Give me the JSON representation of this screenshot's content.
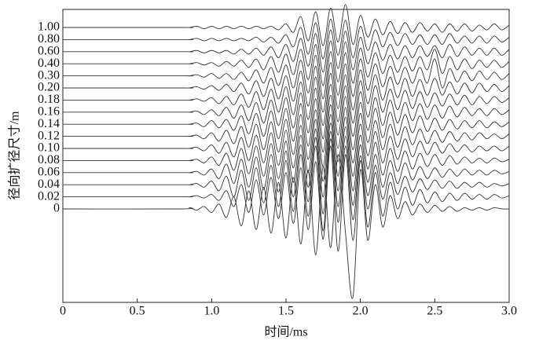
{
  "chart_data": {
    "type": "waveform-stack",
    "x_label": "时间/ms",
    "y_label": "径向扩径尺寸/m",
    "xlim": [
      0,
      3.0
    ],
    "xticks": [
      0,
      0.5,
      {
        "value": 1.0,
        "label": "1.0"
      },
      1.5,
      {
        "value": 2.0,
        "label": "2.0"
      },
      2.5,
      {
        "value": 3.0,
        "label": "3.0"
      }
    ],
    "color": "#333333",
    "x": [
      0,
      0.8,
      0.85,
      0.9,
      0.95,
      1.0,
      1.05,
      1.1,
      1.15,
      1.2,
      1.25,
      1.3,
      1.35,
      1.4,
      1.45,
      1.5,
      1.55,
      1.6,
      1.65,
      1.7,
      1.75,
      1.8,
      1.85,
      1.9,
      1.95,
      2.0,
      2.05,
      2.1,
      2.15,
      2.2,
      2.25,
      2.3,
      2.35,
      2.4,
      2.45,
      2.5,
      2.55,
      2.6,
      2.65,
      2.7,
      2.75,
      2.8,
      2.85,
      2.9,
      2.95,
      3.0
    ],
    "series": [
      {
        "name": "1.00",
        "values": [
          0,
          0,
          0,
          0.1,
          -0.1,
          0.1,
          -0.1,
          0.1,
          -0.1,
          0.1,
          -0.1,
          0.1,
          -0.1,
          0.1,
          -0.2,
          0.3,
          -0.4,
          0.9,
          -1.1,
          1.3,
          -1.5,
          1.6,
          -1.2,
          1.9,
          -1.4,
          1.0,
          -0.8,
          0.7,
          -0.6,
          0.5,
          -0.5,
          0.4,
          -0.4,
          0.4,
          -0.3,
          0.3,
          -0.4,
          0.3,
          -0.3,
          0.3,
          -0.3,
          0.2,
          -0.2,
          0.3,
          -0.2,
          0.2
        ]
      },
      {
        "name": "0.80",
        "values": [
          0,
          0,
          0,
          0.1,
          -0.1,
          0.1,
          -0.1,
          0.1,
          -0.1,
          0.1,
          -0.1,
          0.2,
          -0.2,
          0.2,
          -0.3,
          0.4,
          -0.6,
          1.0,
          -1.2,
          1.4,
          -1.6,
          1.7,
          -1.3,
          1.6,
          -1.5,
          1.1,
          -0.9,
          0.8,
          -0.6,
          0.6,
          -0.5,
          0.5,
          -0.4,
          0.4,
          -0.4,
          0.4,
          -0.4,
          0.5,
          -0.3,
          0.3,
          -0.3,
          0.3,
          -0.3,
          0.3,
          -0.2,
          0.2
        ]
      },
      {
        "name": "0.60",
        "values": [
          0,
          0,
          0,
          0.1,
          -0.1,
          0.1,
          -0.1,
          0.1,
          -0.2,
          0.2,
          -0.2,
          0.3,
          -0.3,
          0.4,
          -0.5,
          0.6,
          -0.8,
          1.1,
          -1.2,
          1.5,
          -1.7,
          1.8,
          -1.4,
          1.7,
          -1.5,
          1.2,
          -1.0,
          0.8,
          -0.7,
          0.6,
          -0.6,
          0.5,
          -0.5,
          0.5,
          -0.4,
          0.5,
          -0.5,
          0.6,
          -0.4,
          0.4,
          -0.3,
          0.3,
          -0.3,
          0.3,
          -0.3,
          0.2
        ]
      },
      {
        "name": "0.40",
        "values": [
          0,
          0,
          0,
          0.1,
          -0.1,
          0.1,
          -0.2,
          0.2,
          -0.2,
          0.3,
          -0.3,
          0.4,
          -0.5,
          0.6,
          -0.7,
          0.8,
          -0.9,
          1.2,
          -1.3,
          1.6,
          -1.8,
          1.9,
          -1.5,
          1.8,
          -1.6,
          1.3,
          -1.1,
          0.9,
          -0.8,
          0.7,
          -0.7,
          0.6,
          -0.6,
          0.6,
          -0.5,
          1.2,
          -0.8,
          0.6,
          -0.5,
          0.4,
          -0.4,
          0.3,
          -0.3,
          0.3,
          -0.3,
          0.2
        ]
      },
      {
        "name": "0.30",
        "values": [
          0,
          0,
          0,
          0.1,
          -0.1,
          0.2,
          -0.2,
          0.2,
          -0.3,
          0.3,
          -0.4,
          0.5,
          -0.6,
          0.7,
          -0.8,
          0.9,
          -1.0,
          1.3,
          -1.4,
          1.7,
          -1.9,
          2.0,
          -1.6,
          1.9,
          -1.7,
          1.4,
          -1.2,
          1.0,
          -0.9,
          0.8,
          -0.7,
          0.7,
          -0.6,
          0.7,
          -0.6,
          1.4,
          -1.0,
          0.6,
          -0.5,
          0.4,
          -0.4,
          0.4,
          -0.3,
          0.3,
          -0.3,
          0.2
        ]
      },
      {
        "name": "0.20",
        "values": [
          0,
          0,
          0,
          0.1,
          -0.1,
          0.2,
          -0.2,
          0.3,
          -0.3,
          0.4,
          -0.5,
          0.6,
          -0.7,
          0.8,
          -0.9,
          1.0,
          -1.1,
          1.4,
          -1.5,
          1.8,
          -2.0,
          2.1,
          -1.7,
          2.0,
          -1.8,
          1.5,
          -1.3,
          1.1,
          -1.0,
          0.9,
          -0.8,
          0.8,
          -0.7,
          0.7,
          -0.6,
          0.8,
          -0.6,
          0.5,
          -0.5,
          0.4,
          -0.4,
          0.4,
          -0.3,
          0.3,
          -0.3,
          0.2
        ]
      },
      {
        "name": "0.18",
        "values": [
          0,
          0,
          0,
          0.1,
          -0.1,
          0.2,
          -0.3,
          0.3,
          -0.4,
          0.5,
          -0.6,
          0.7,
          -0.8,
          0.9,
          -1.0,
          1.1,
          -1.2,
          1.5,
          -1.6,
          1.9,
          -2.1,
          2.2,
          -1.8,
          2.1,
          -1.9,
          1.6,
          -1.4,
          1.2,
          -1.0,
          0.9,
          -0.8,
          0.8,
          -0.7,
          0.7,
          -0.6,
          0.6,
          -0.5,
          0.5,
          -0.4,
          0.4,
          -0.4,
          0.3,
          -0.3,
          0.3,
          -0.2,
          0.2
        ]
      },
      {
        "name": "0.16",
        "values": [
          0,
          0,
          0,
          0.1,
          -0.2,
          0.2,
          -0.3,
          0.4,
          -0.5,
          0.6,
          -0.7,
          0.8,
          -0.9,
          1.0,
          -1.1,
          1.2,
          -1.3,
          1.6,
          -1.7,
          2.0,
          -2.2,
          2.3,
          -1.9,
          2.2,
          -2.0,
          1.7,
          -1.5,
          1.2,
          -1.1,
          1.0,
          -0.9,
          0.8,
          -0.7,
          0.7,
          -0.6,
          0.6,
          -0.5,
          0.5,
          -0.4,
          0.4,
          -0.3,
          0.3,
          -0.3,
          0.3,
          -0.2,
          0.2
        ]
      },
      {
        "name": "0.14",
        "values": [
          0,
          0,
          0,
          0.1,
          -0.2,
          0.3,
          -0.3,
          0.4,
          -0.5,
          0.7,
          -0.8,
          0.9,
          -1.0,
          1.1,
          -1.2,
          1.3,
          -1.4,
          1.7,
          -1.8,
          2.1,
          -2.3,
          2.4,
          -2.0,
          2.3,
          -2.1,
          1.8,
          -1.5,
          1.3,
          -1.1,
          1.0,
          -0.9,
          0.8,
          -0.7,
          0.7,
          -0.6,
          0.5,
          -0.5,
          0.4,
          -0.4,
          0.3,
          -0.3,
          0.3,
          -0.3,
          0.2,
          -0.2,
          0.2
        ]
      },
      {
        "name": "0.12",
        "values": [
          0,
          0,
          0,
          0.1,
          -0.2,
          0.3,
          -0.4,
          0.5,
          -0.6,
          0.8,
          -0.9,
          1.0,
          -1.1,
          1.2,
          -1.3,
          1.4,
          -1.5,
          1.8,
          -1.9,
          2.2,
          -2.5,
          2.6,
          -2.1,
          2.4,
          -2.2,
          1.9,
          -1.6,
          1.3,
          -1.1,
          1.0,
          -0.9,
          0.8,
          -0.7,
          0.6,
          -0.6,
          0.5,
          -0.5,
          0.4,
          -0.4,
          0.3,
          -0.3,
          0.3,
          -0.2,
          0.2,
          -0.2,
          0.2
        ]
      },
      {
        "name": "0.10",
        "values": [
          0,
          0,
          0,
          0.1,
          -0.2,
          0.3,
          -0.4,
          0.5,
          -0.7,
          0.9,
          -1.0,
          1.1,
          -1.2,
          1.3,
          -1.4,
          1.5,
          -1.6,
          1.9,
          -2.0,
          2.4,
          -2.7,
          2.8,
          -2.3,
          2.6,
          -2.3,
          2.0,
          -1.7,
          1.4,
          -1.2,
          1.0,
          -0.9,
          0.8,
          -0.7,
          0.6,
          -0.5,
          0.5,
          -0.4,
          0.4,
          -0.3,
          0.3,
          -0.3,
          0.2,
          -0.2,
          0.2,
          -0.2,
          0.2
        ]
      },
      {
        "name": "0.08",
        "values": [
          0,
          0,
          0,
          0.1,
          -0.2,
          0.3,
          -0.4,
          0.6,
          -0.8,
          1.0,
          -1.1,
          1.2,
          -1.3,
          1.4,
          -1.5,
          1.6,
          -1.8,
          2.1,
          -2.2,
          2.6,
          -3.0,
          3.1,
          -2.5,
          2.8,
          -2.5,
          2.1,
          -1.8,
          1.5,
          -1.2,
          1.0,
          -0.9,
          0.8,
          -0.7,
          0.6,
          -0.5,
          0.5,
          -0.4,
          0.4,
          -0.3,
          0.3,
          -0.2,
          0.2,
          -0.2,
          0.2,
          -0.1,
          0.1
        ]
      },
      {
        "name": "0.06",
        "values": [
          0,
          0,
          0,
          0.1,
          -0.2,
          0.3,
          -0.5,
          0.7,
          -0.9,
          1.1,
          -1.2,
          1.3,
          -1.4,
          1.5,
          -1.6,
          1.8,
          -2.0,
          2.3,
          -2.4,
          2.9,
          -3.4,
          3.4,
          -2.8,
          3.0,
          -2.7,
          2.3,
          -1.9,
          1.5,
          -1.2,
          1.0,
          -0.9,
          0.8,
          -0.6,
          0.5,
          -0.5,
          0.4,
          -0.4,
          0.3,
          -0.3,
          0.3,
          -0.2,
          0.2,
          -0.2,
          0.2,
          -0.1,
          0.1
        ]
      },
      {
        "name": "0.04",
        "values": [
          0,
          0,
          0,
          0.1,
          -0.2,
          0.3,
          -0.5,
          0.7,
          -1.0,
          1.2,
          -1.3,
          1.4,
          -1.5,
          1.6,
          -1.8,
          2.0,
          -2.2,
          2.5,
          -2.6,
          3.2,
          -3.8,
          3.8,
          -3.1,
          3.2,
          -2.9,
          2.4,
          -2.0,
          1.6,
          -1.2,
          1.0,
          -0.8,
          0.7,
          -0.6,
          0.5,
          -0.4,
          0.4,
          -0.3,
          0.3,
          -0.3,
          0.2,
          -0.2,
          0.2,
          -0.2,
          0.1,
          -0.1,
          0.1
        ]
      },
      {
        "name": "0.02",
        "values": [
          0,
          0,
          0,
          0.1,
          -0.1,
          0.2,
          -0.3,
          0.5,
          -0.8,
          1.0,
          -1.3,
          1.4,
          -1.5,
          1.6,
          -1.8,
          2.0,
          -2.2,
          2.4,
          -2.7,
          2.9,
          -3.5,
          4.2,
          -4.5,
          3.5,
          -3.6,
          3.0,
          -2.5,
          2.0,
          -1.6,
          1.2,
          -1.0,
          0.8,
          -0.7,
          0.6,
          -0.5,
          0.4,
          -0.4,
          0.3,
          -0.3,
          0.3,
          -0.2,
          0.2,
          -0.2,
          0.2,
          -0.1,
          0.1
        ]
      },
      {
        "name": "0",
        "values": [
          0,
          0,
          0.1,
          -0.1,
          0.2,
          -0.3,
          0.4,
          -0.7,
          1.0,
          -1.4,
          1.5,
          -1.7,
          1.8,
          -2.0,
          2.2,
          -2.4,
          2.6,
          -2.9,
          3.2,
          -3.8,
          3.5,
          -3.2,
          4.5,
          -2.0,
          -7.3,
          3.2,
          -2.6,
          2.0,
          -1.5,
          1.1,
          -0.8,
          0.6,
          -0.5,
          0.4,
          -0.3,
          0.3,
          -0.2,
          0.2,
          -0.2,
          0.1,
          -0.1,
          0.1,
          -0.1,
          0.1,
          0,
          0
        ]
      }
    ]
  }
}
